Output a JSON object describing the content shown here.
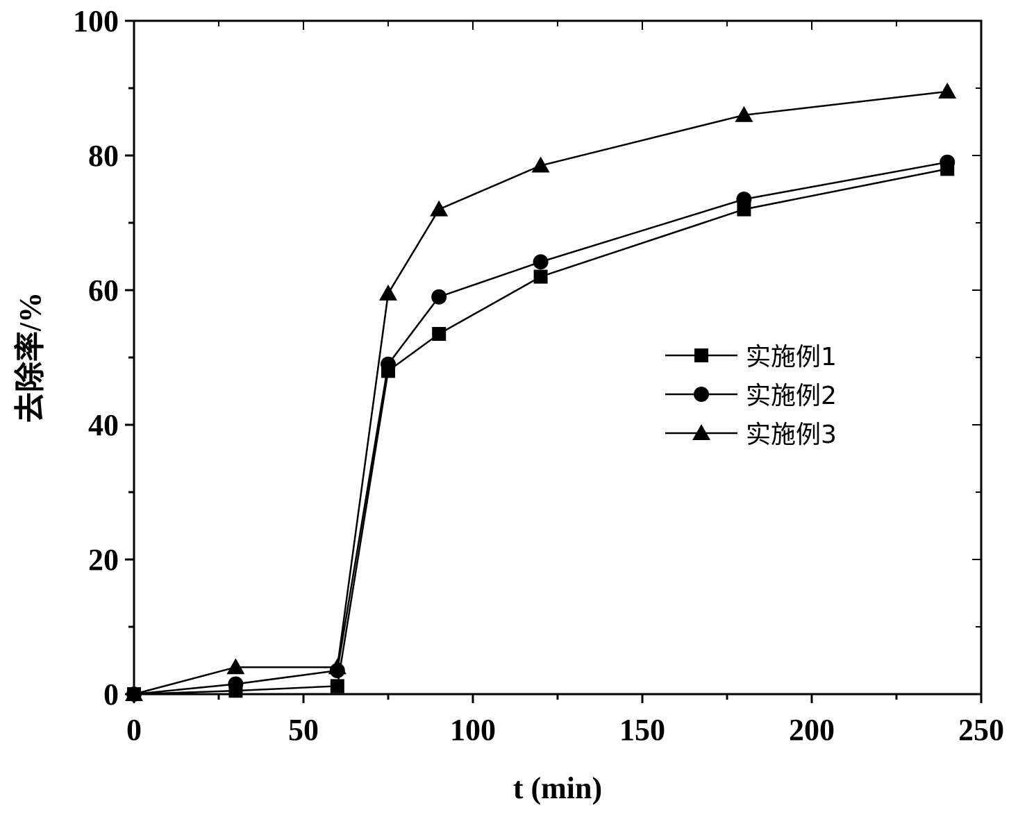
{
  "chart_data": {
    "type": "line",
    "xlabel": "t (min)",
    "ylabel": "去除率/%",
    "xlim": [
      0,
      250
    ],
    "ylim": [
      0,
      100
    ],
    "xticks": [
      0,
      50,
      100,
      150,
      200,
      250
    ],
    "yticks": [
      0,
      20,
      40,
      60,
      80,
      100
    ],
    "grid": false,
    "legend_position": "center-right",
    "series": [
      {
        "name": "实施例1",
        "marker": "square",
        "x": [
          0,
          30,
          60,
          75,
          90,
          120,
          180,
          240
        ],
        "y": [
          0,
          0.5,
          1.2,
          48,
          53.5,
          62,
          72,
          78
        ]
      },
      {
        "name": "实施例2",
        "marker": "circle",
        "x": [
          0,
          30,
          60,
          75,
          90,
          120,
          180,
          240
        ],
        "y": [
          0,
          1.5,
          3.5,
          49,
          59,
          64.2,
          73.5,
          79
        ]
      },
      {
        "name": "实施例3",
        "marker": "triangle",
        "x": [
          0,
          30,
          60,
          75,
          90,
          120,
          180,
          240
        ],
        "y": [
          0,
          4,
          4,
          59.5,
          72,
          78.5,
          86,
          89.5
        ]
      }
    ]
  },
  "colors": {
    "line": "#000000",
    "background": "#ffffff"
  }
}
